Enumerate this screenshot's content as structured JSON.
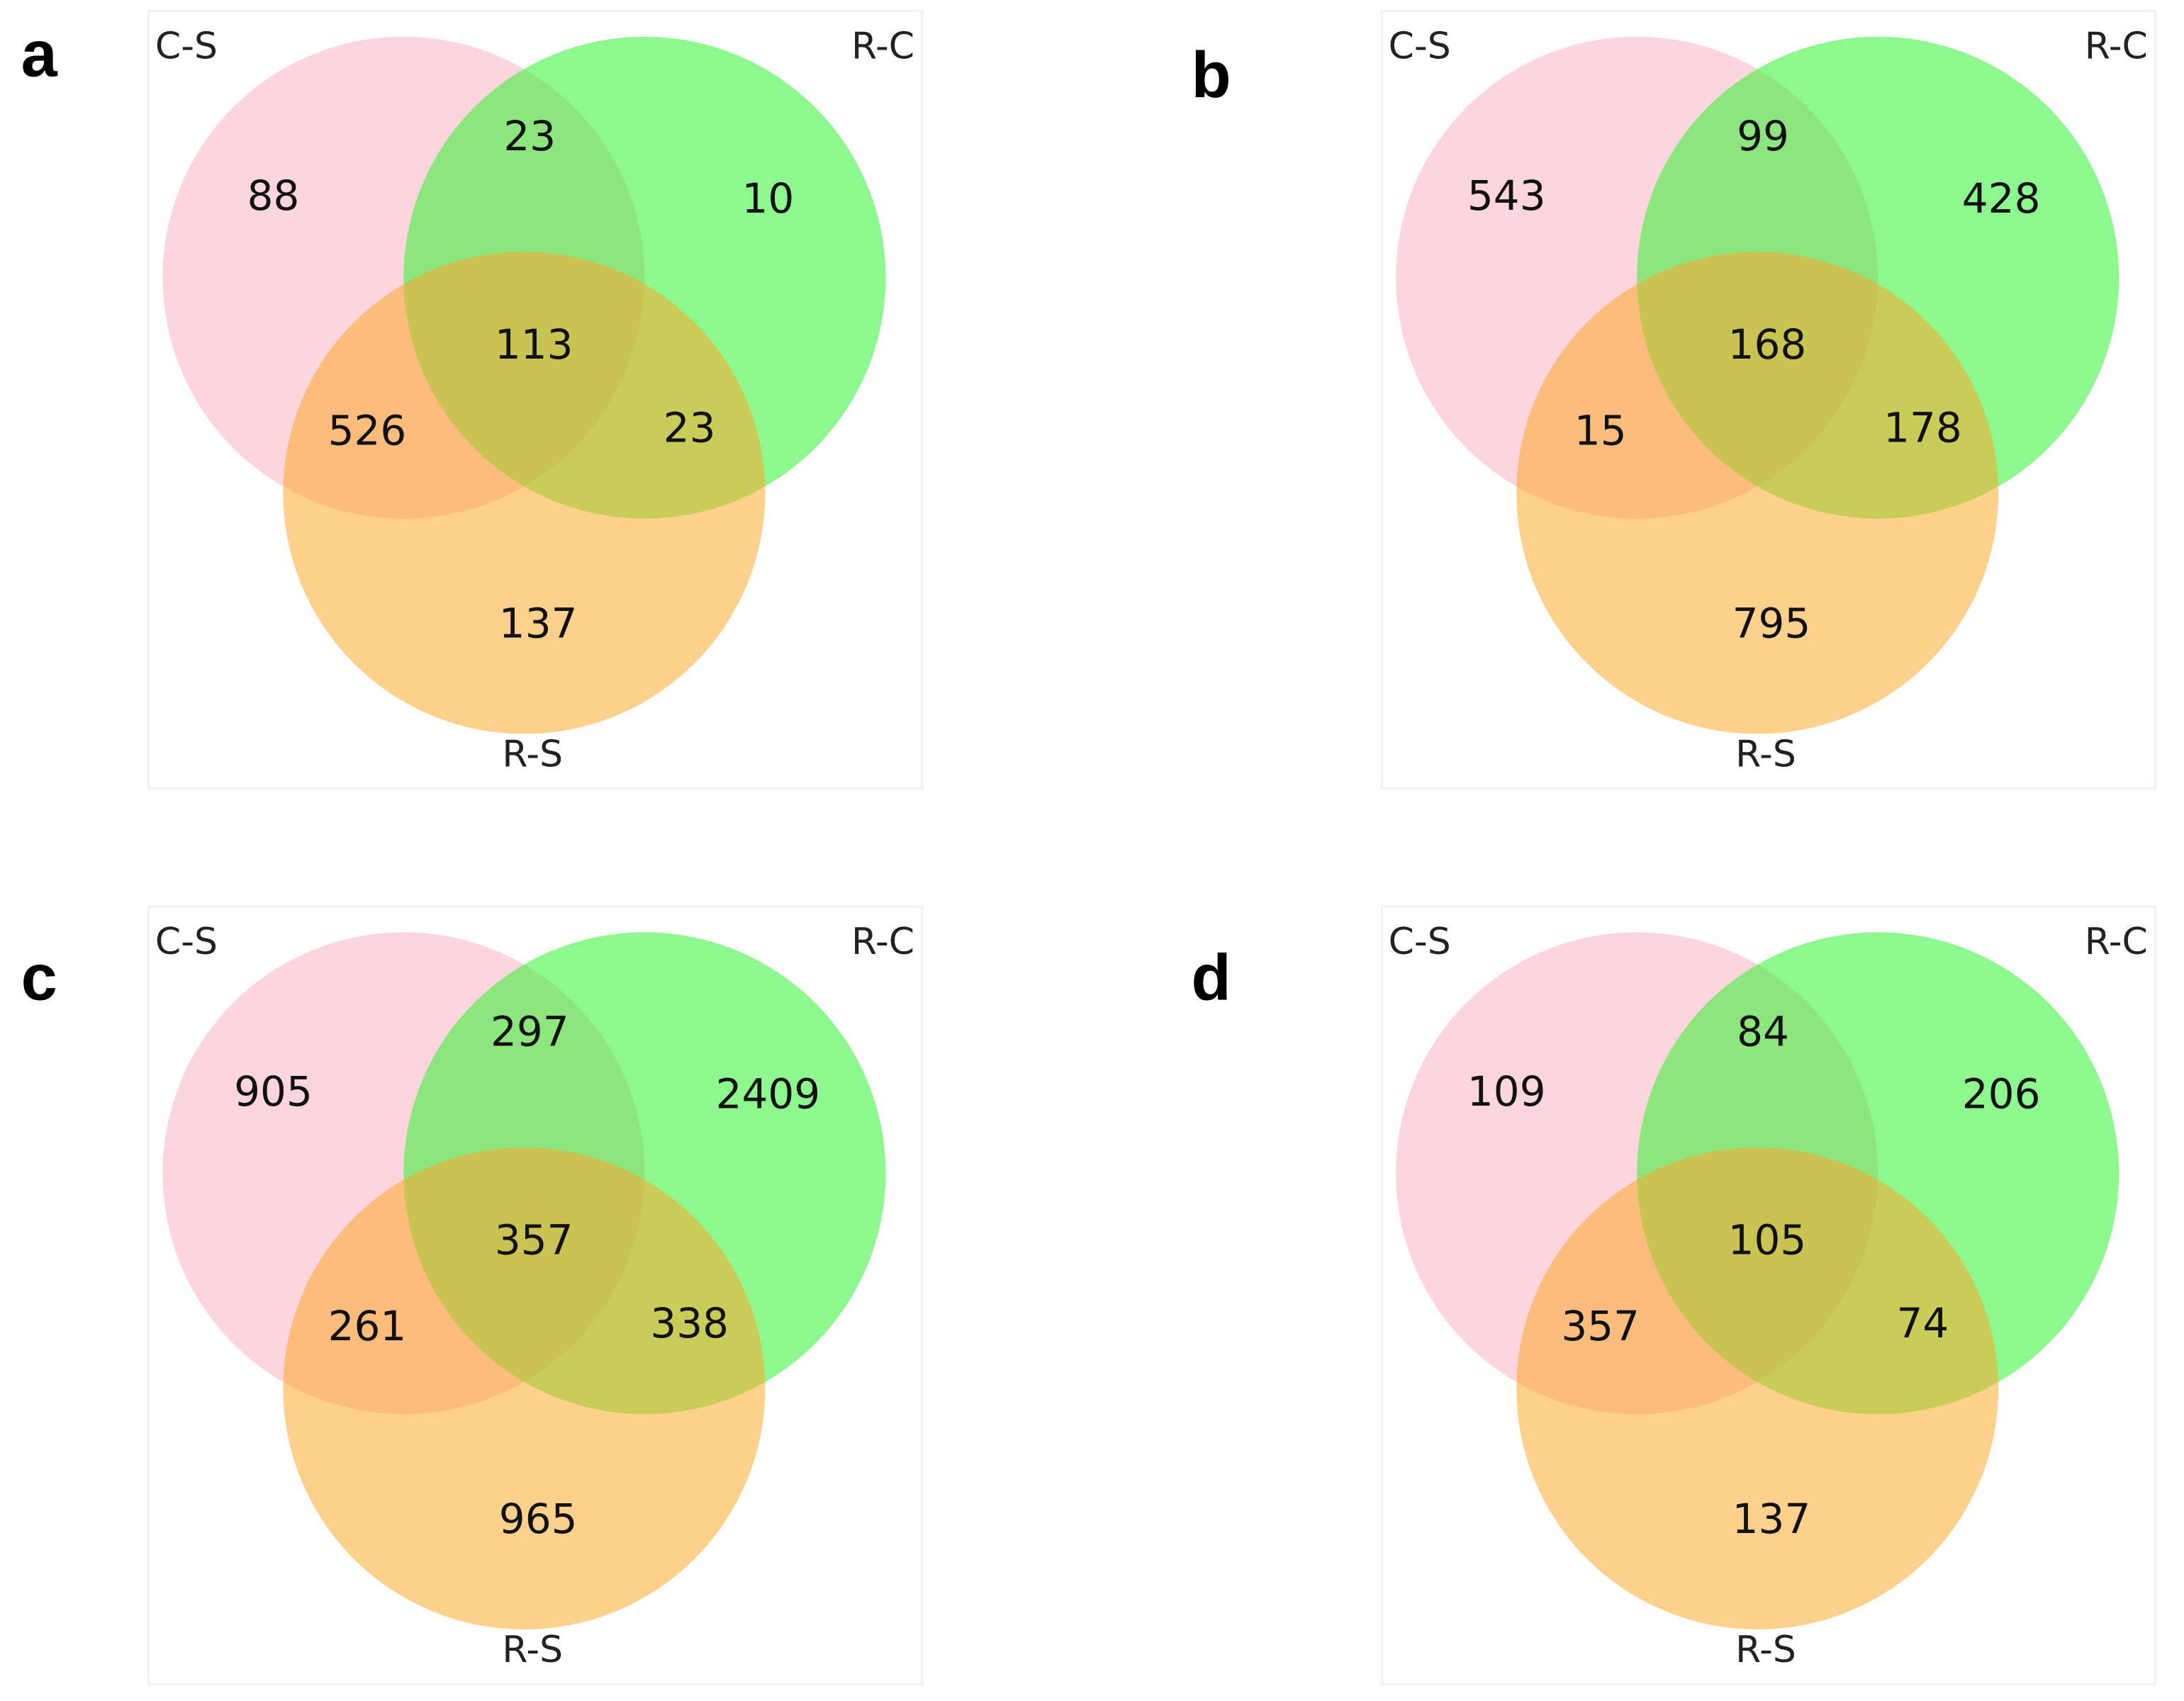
{
  "colors": {
    "C-S": "#fcb3c0",
    "R-C": "#2ff22f",
    "R-S": "#fca92d"
  },
  "panels": [
    {
      "letter": "a",
      "set_labels": {
        "cs": "C-S",
        "rc": "R-C",
        "rs": "R-S"
      },
      "regions": {
        "cs_only": "88",
        "rc_only": "10",
        "rs_only": "137",
        "cs_rc": "23",
        "cs_rs": "526",
        "rc_rs": "23",
        "all": "113"
      }
    },
    {
      "letter": "b",
      "set_labels": {
        "cs": "C-S",
        "rc": "R-C",
        "rs": "R-S"
      },
      "regions": {
        "cs_only": "543",
        "rc_only": "428",
        "rs_only": "795",
        "cs_rc": "99",
        "cs_rs": "15",
        "rc_rs": "178",
        "all": "168"
      }
    },
    {
      "letter": "c",
      "set_labels": {
        "cs": "C-S",
        "rc": "R-C",
        "rs": "R-S"
      },
      "regions": {
        "cs_only": "905",
        "rc_only": "2409",
        "rs_only": "965",
        "cs_rc": "297",
        "cs_rs": "261",
        "rc_rs": "338",
        "all": "357"
      }
    },
    {
      "letter": "d",
      "set_labels": {
        "cs": "C-S",
        "rc": "R-C",
        "rs": "R-S"
      },
      "regions": {
        "cs_only": "109",
        "rc_only": "206",
        "rs_only": "137",
        "cs_rc": "84",
        "cs_rs": "357",
        "rc_rs": "74",
        "all": "105"
      }
    }
  ]
}
